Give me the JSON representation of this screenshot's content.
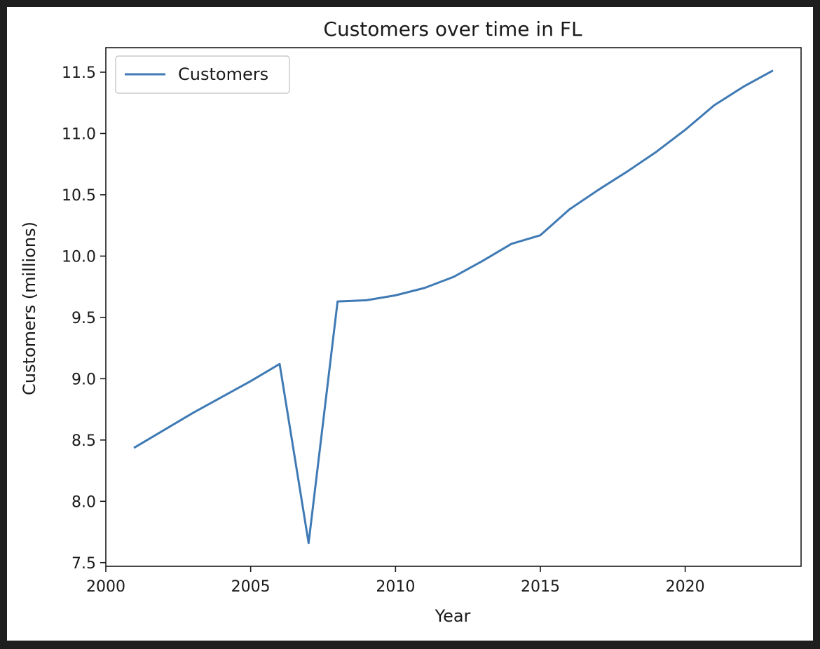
{
  "chart_data": {
    "type": "line",
    "title": "Customers over time in FL",
    "xlabel": "Year",
    "ylabel": "Customers (millions)",
    "xlim": [
      2000,
      2024
    ],
    "ylim": [
      7.47,
      11.7
    ],
    "xticks": [
      2000,
      2005,
      2010,
      2015,
      2020
    ],
    "xtick_labels": [
      "2000",
      "2005",
      "2010",
      "2015",
      "2020"
    ],
    "yticks": [
      7.5,
      8.0,
      8.5,
      9.0,
      9.5,
      10.0,
      10.5,
      11.0,
      11.5
    ],
    "ytick_labels": [
      "7.5",
      "8.0",
      "8.5",
      "9.0",
      "9.5",
      "10.0",
      "10.5",
      "11.0",
      "11.5"
    ],
    "grid": false,
    "legend_position": "top-left",
    "x": [
      2001,
      2002,
      2003,
      2004,
      2005,
      2006,
      2007,
      2008,
      2009,
      2010,
      2011,
      2012,
      2013,
      2014,
      2015,
      2016,
      2017,
      2018,
      2019,
      2020,
      2021,
      2022,
      2023
    ],
    "series": [
      {
        "name": "Customers",
        "color": "#3f7ab5",
        "values": [
          8.44,
          8.58,
          8.72,
          8.85,
          8.98,
          9.12,
          7.66,
          9.63,
          9.64,
          9.68,
          9.74,
          9.83,
          9.96,
          10.1,
          10.17,
          10.38,
          10.54,
          10.69,
          10.85,
          11.03,
          11.23,
          11.38,
          11.51
        ]
      }
    ]
  }
}
